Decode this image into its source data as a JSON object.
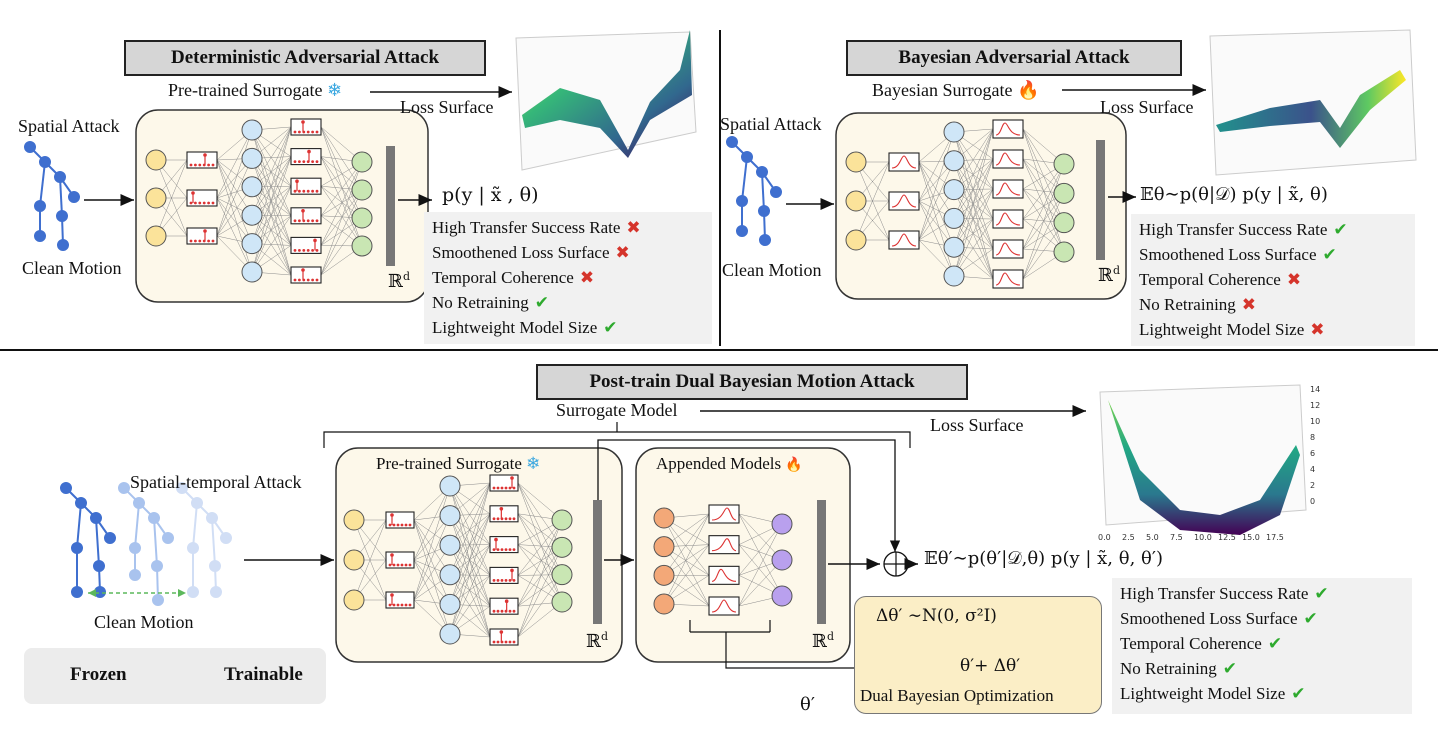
{
  "deterministic": {
    "title": "Deterministic Adversarial Attack",
    "surrogate_label": "Pre-trained Surrogate",
    "surrogate_icon": "snowflake-icon",
    "loss_surface_label": "Loss Surface",
    "input_top_label": "Spatial Attack",
    "input_bottom_label": "Clean Motion",
    "rd_label": "ℝ",
    "rd_sup": "d",
    "output_expr": "p(y | x̃ , θ)",
    "properties": [
      {
        "label": "High Transfer Success Rate",
        "status": "no"
      },
      {
        "label": "Smoothened Loss Surface",
        "status": "no"
      },
      {
        "label": "Temporal Coherence",
        "status": "no"
      },
      {
        "label": "No Retraining",
        "status": "ok"
      },
      {
        "label": "Lightweight Model Size",
        "status": "ok"
      }
    ]
  },
  "bayesian": {
    "title": "Bayesian Adversarial Attack",
    "surrogate_label": "Bayesian Surrogate",
    "surrogate_icon": "fire-icon",
    "loss_surface_label": "Loss Surface",
    "input_top_label": "Spatial Attack",
    "input_bottom_label": "Clean Motion",
    "rd_label": "ℝ",
    "rd_sup": "d",
    "output_expr": "𝔼θ∼p(θ|𝒟) p(y | x̃, θ)",
    "properties": [
      {
        "label": "High Transfer Success Rate",
        "status": "ok"
      },
      {
        "label": "Smoothened Loss Surface",
        "status": "ok"
      },
      {
        "label": "Temporal Coherence",
        "status": "no"
      },
      {
        "label": "No Retraining",
        "status": "no"
      },
      {
        "label": "Lightweight Model Size",
        "status": "no"
      }
    ]
  },
  "dual": {
    "title": "Post-train Dual Bayesian Motion Attack",
    "surrogate_model_label": "Surrogate Model",
    "loss_surface_label": "Loss Surface",
    "input_top_label": "Spatial-temporal Attack",
    "input_bottom_label": "Clean Motion",
    "pretrained_label": "Pre-trained Surrogate",
    "appended_label": "Appended Models",
    "rd_label": "ℝ",
    "rd_sup": "d",
    "output_expr": "𝔼θ′∼p(θ′|𝒟,θ) p(y | x̃, θ, θ′)",
    "theta_prime": "θ′",
    "dbo_noise": "Δθ′ ∼N(0, σ²I)",
    "dbo_sum": "θ′+ Δθ′",
    "dbo_label": "Dual Bayesian Optimization",
    "properties": [
      {
        "label": "High Transfer Success Rate",
        "status": "ok"
      },
      {
        "label": "Smoothened Loss Surface",
        "status": "ok"
      },
      {
        "label": "Temporal Coherence",
        "status": "ok"
      },
      {
        "label": "No Retraining",
        "status": "ok"
      },
      {
        "label": "Lightweight Model Size",
        "status": "ok"
      }
    ],
    "surface_axis_z": [
      "14",
      "12",
      "10",
      "8",
      "6",
      "4",
      "2",
      "0"
    ],
    "surface_axis_x": [
      "0.0",
      "2.5",
      "5.0",
      "7.5",
      "10.0",
      "12.5",
      "15.0",
      "17.5"
    ]
  },
  "legend": {
    "frozen_label": "Frozen",
    "trainable_label": "Trainable",
    "frozen_icon": "snowflake-icon",
    "trainable_icon": "fire-icon"
  },
  "colors": {
    "yellow_node": "#fbe39a",
    "blue_node": "#cfe6f7",
    "green_node": "#c9e6b3",
    "orange_node": "#f3a878",
    "purple_node": "#b9a0ee",
    "box_fill": "#fdf8ea",
    "skeleton": "#3f6fcf",
    "check": "#2eaa2e",
    "cross": "#d5342b"
  }
}
